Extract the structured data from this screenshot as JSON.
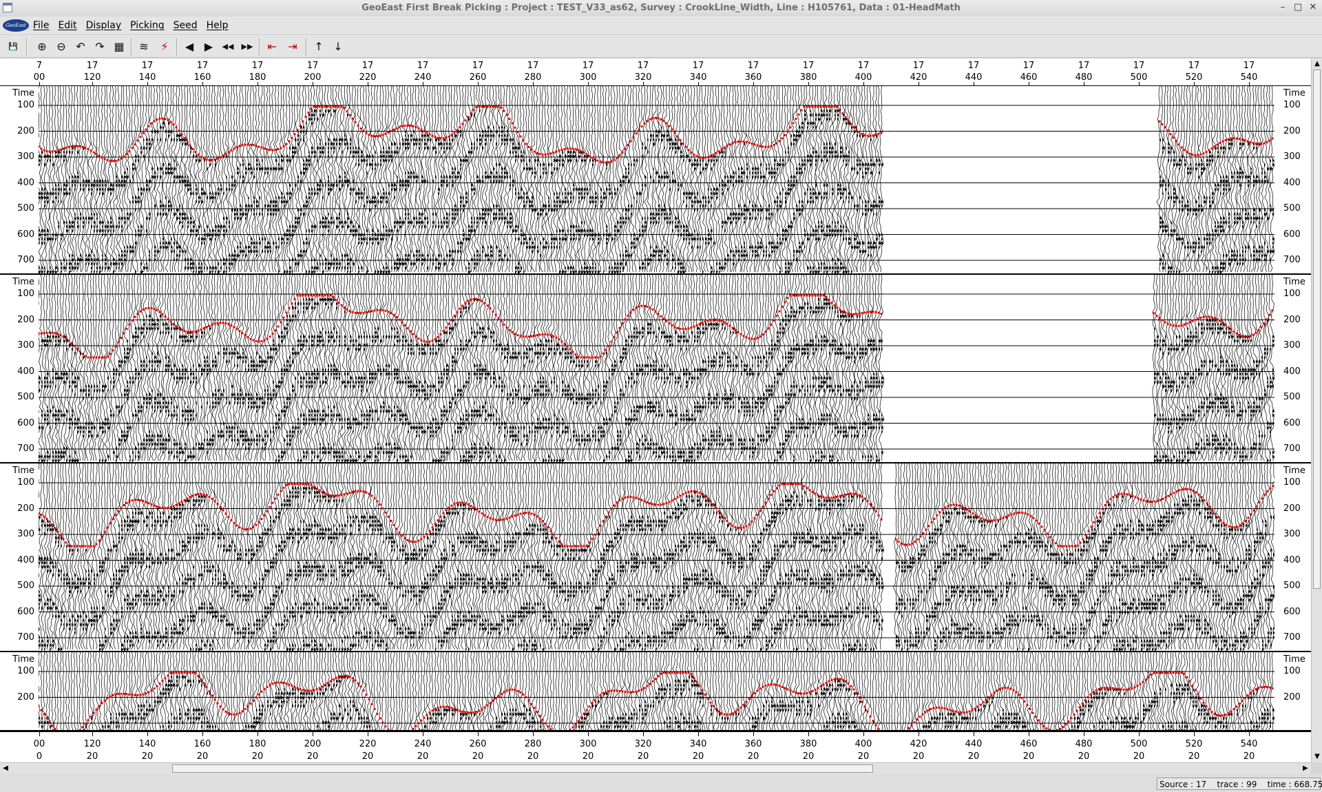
{
  "window": {
    "title": "GeoEast First Break Picking : Project : TEST_V33_as62,  Survey : CrookLine_Width,  Line : H105761,  Data : 01-HeadMath",
    "controls": [
      "–",
      "□",
      "✕"
    ]
  },
  "logo_text": "GeoEast",
  "menu": [
    {
      "label": "File"
    },
    {
      "label": "Edit"
    },
    {
      "label": "Display"
    },
    {
      "label": "Picking"
    },
    {
      "label": "Seed"
    },
    {
      "label": "Help"
    }
  ],
  "toolbar": [
    {
      "name": "save-icon",
      "glyph": "💾"
    },
    {
      "name": "zoom-in-icon",
      "glyph": "⊕"
    },
    {
      "name": "zoom-out-icon",
      "glyph": "⊖"
    },
    {
      "name": "undo-icon",
      "glyph": "↶"
    },
    {
      "name": "redo-icon",
      "glyph": "↷"
    },
    {
      "name": "grid-icon",
      "glyph": "▦"
    },
    {
      "name": "wiggle-display-icon",
      "glyph": "≋"
    },
    {
      "name": "pick-mode-icon",
      "glyph": "⚡"
    },
    {
      "name": "previous-icon",
      "glyph": "◀"
    },
    {
      "name": "next-icon",
      "glyph": "▶"
    },
    {
      "name": "first-icon",
      "glyph": "◀◀"
    },
    {
      "name": "last-icon",
      "glyph": "▶▶"
    },
    {
      "name": "shift-left-icon",
      "glyph": "⇤"
    },
    {
      "name": "shift-right-icon",
      "glyph": "⇥"
    },
    {
      "name": "move-up-icon",
      "glyph": "↑"
    },
    {
      "name": "move-down-icon",
      "glyph": "↓"
    }
  ],
  "axis": {
    "top_row1": [
      "7",
      "17",
      "17",
      "17",
      "17",
      "17",
      "17",
      "17",
      "17",
      "17",
      "17",
      "17",
      "17",
      "17",
      "17",
      "17",
      "17",
      "17",
      "17",
      "17",
      "17",
      "17",
      "17"
    ],
    "top_row2": [
      "00",
      "120",
      "140",
      "160",
      "180",
      "200",
      "220",
      "240",
      "260",
      "280",
      "300",
      "320",
      "340",
      "360",
      "380",
      "400",
      "420",
      "440",
      "460",
      "480",
      "500",
      "520",
      "540"
    ],
    "bottom_row1": [
      "00",
      "120",
      "140",
      "160",
      "180",
      "200",
      "220",
      "240",
      "260",
      "280",
      "300",
      "320",
      "340",
      "360",
      "380",
      "400",
      "420",
      "440",
      "460",
      "480",
      "500",
      "520",
      "540"
    ],
    "bottom_row2": [
      "0",
      "20",
      "20",
      "20",
      "20",
      "20",
      "20",
      "20",
      "20",
      "20",
      "20",
      "20",
      "20",
      "20",
      "20",
      "20",
      "20",
      "20",
      "20",
      "20",
      "20",
      "20",
      "20"
    ],
    "time_title": "Time",
    "time_ticks": [
      "100",
      "200",
      "300",
      "400",
      "500",
      "600",
      "700"
    ],
    "time_ticks_short": [
      "100",
      "200"
    ]
  },
  "panels": [
    {
      "segments": [
        [
          0,
          1225
        ],
        [
          1628,
          1795
        ]
      ]
    },
    {
      "segments": [
        [
          0,
          1225
        ],
        [
          1620,
          1795
        ]
      ]
    },
    {
      "segments": [
        [
          0,
          1225
        ],
        [
          1245,
          1795
        ]
      ]
    },
    {
      "segments": [
        [
          0,
          1795
        ]
      ]
    }
  ],
  "colors": {
    "pick": "#e00000",
    "trace": "#000000",
    "background": "#ffffff"
  },
  "status": {
    "source": "Source : 17",
    "trace": "trace : 99",
    "time": "time : 668.75"
  }
}
